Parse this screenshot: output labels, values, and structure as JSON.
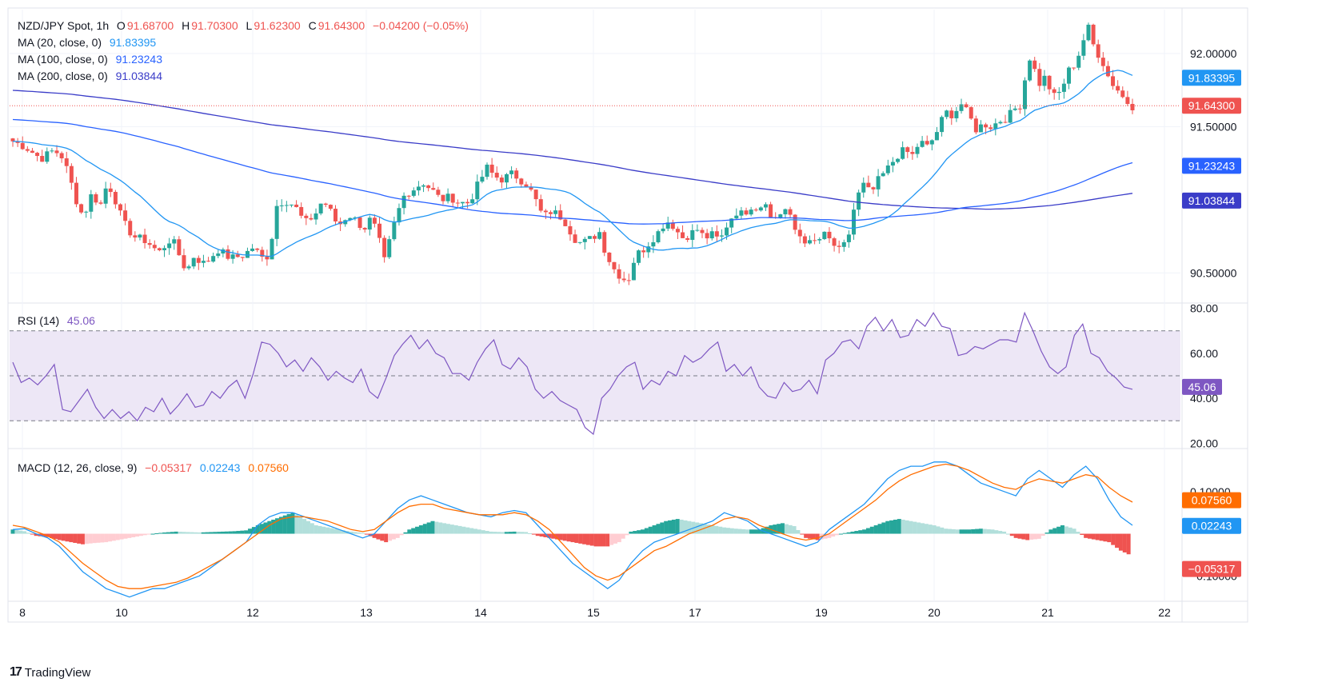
{
  "colors": {
    "up": "#26a69a",
    "down": "#ef5350",
    "ma20": "#2196f3",
    "ma100": "#2962ff",
    "ma200": "#3a3cc8",
    "rsi": "#7e57c2",
    "rsi_band": "#ede7f6",
    "macd": "#2196f3",
    "signal": "#ff6d00",
    "hist_up_strong": "#26a69a",
    "hist_up_weak": "#b2dfdb",
    "hist_down_strong": "#ef5350",
    "hist_down_weak": "#ffcdd2",
    "grid": "#f0f3fa"
  },
  "header": {
    "symbol": "NZD/JPY Spot, 1h",
    "o_label": "O",
    "o": "91.68700",
    "h_label": "H",
    "h": "91.70300",
    "l_label": "L",
    "l": "91.62300",
    "c_label": "C",
    "c": "91.64300",
    "change": "−0.04200 (−0.05%)",
    "ma20_label": "MA (20, close, 0)",
    "ma20_value": "91.83395",
    "ma100_label": "MA (100, close, 0)",
    "ma100_value": "91.23243",
    "ma200_label": "MA (200, close, 0)",
    "ma200_value": "91.03844",
    "rsi_label": "RSI (14)",
    "rsi_value": "45.06",
    "macd_label": "MACD (12, 26, close, 9)",
    "macd_hist": "−0.05317",
    "macd_line": "0.02243",
    "macd_signal": "0.07560"
  },
  "brand": {
    "logo": "17",
    "name": "TradingView"
  },
  "chart_data": [
    {
      "type": "candlestick",
      "title": "NZD/JPY Spot, 1h",
      "x_labels": [
        "8",
        "10",
        "12",
        "13",
        "14",
        "15",
        "17",
        "19",
        "20",
        "21",
        "22"
      ],
      "y_ticks": [
        "92.00000",
        "91.50000",
        "90.50000"
      ],
      "ylim": [
        90.3,
        92.3
      ],
      "last_price": 91.643,
      "price_labels": [
        "91.83395",
        "91.64300",
        "91.23243",
        "91.03844"
      ],
      "close_path": [
        [
          0,
          91.4
        ],
        [
          10,
          91.36
        ],
        [
          22,
          91.28
        ],
        [
          32,
          91.34
        ],
        [
          38,
          91.3
        ],
        [
          44,
          91.17
        ],
        [
          48,
          91.03
        ],
        [
          55,
          90.88
        ],
        [
          62,
          91.05
        ],
        [
          68,
          90.95
        ],
        [
          74,
          91.12
        ],
        [
          80,
          91.0
        ],
        [
          86,
          90.85
        ],
        [
          94,
          90.75
        ],
        [
          104,
          90.72
        ],
        [
          114,
          90.64
        ],
        [
          124,
          90.74
        ],
        [
          130,
          90.62
        ],
        [
          136,
          90.5
        ],
        [
          140,
          90.62
        ],
        [
          150,
          90.56
        ],
        [
          160,
          90.66
        ],
        [
          170,
          90.6
        ],
        [
          180,
          90.62
        ],
        [
          188,
          90.68
        ],
        [
          194,
          90.6
        ],
        [
          200,
          90.62
        ],
        [
          206,
          90.96
        ],
        [
          212,
          91.0
        ],
        [
          220,
          90.96
        ],
        [
          228,
          90.84
        ],
        [
          236,
          90.9
        ],
        [
          242,
          91.0
        ],
        [
          248,
          90.92
        ],
        [
          254,
          90.82
        ],
        [
          262,
          90.9
        ],
        [
          268,
          90.86
        ],
        [
          274,
          90.8
        ],
        [
          280,
          90.88
        ],
        [
          286,
          90.72
        ],
        [
          290,
          90.58
        ],
        [
          296,
          90.78
        ],
        [
          300,
          90.9
        ],
        [
          306,
          91.04
        ],
        [
          314,
          91.08
        ],
        [
          320,
          91.12
        ],
        [
          328,
          91.06
        ],
        [
          334,
          91.0
        ],
        [
          342,
          91.02
        ],
        [
          348,
          90.98
        ],
        [
          356,
          90.98
        ],
        [
          364,
          91.12
        ],
        [
          370,
          91.22
        ],
        [
          376,
          91.16
        ],
        [
          382,
          91.14
        ],
        [
          390,
          91.18
        ],
        [
          396,
          91.14
        ],
        [
          402,
          91.1
        ],
        [
          408,
          91.0
        ],
        [
          414,
          90.88
        ],
        [
          420,
          90.92
        ],
        [
          426,
          90.9
        ],
        [
          432,
          90.84
        ],
        [
          438,
          90.74
        ],
        [
          444,
          90.7
        ],
        [
          452,
          90.74
        ],
        [
          458,
          90.78
        ],
        [
          462,
          90.66
        ],
        [
          468,
          90.54
        ],
        [
          474,
          90.48
        ],
        [
          480,
          90.44
        ],
        [
          486,
          90.62
        ],
        [
          492,
          90.66
        ],
        [
          498,
          90.72
        ],
        [
          504,
          90.78
        ],
        [
          510,
          90.86
        ],
        [
          516,
          90.82
        ],
        [
          522,
          90.74
        ],
        [
          528,
          90.76
        ],
        [
          534,
          90.8
        ],
        [
          540,
          90.74
        ],
        [
          546,
          90.76
        ],
        [
          552,
          90.72
        ],
        [
          558,
          90.84
        ],
        [
          564,
          90.92
        ],
        [
          570,
          90.9
        ],
        [
          576,
          90.96
        ],
        [
          582,
          90.94
        ],
        [
          588,
          91.0
        ],
        [
          592,
          90.86
        ],
        [
          598,
          90.9
        ],
        [
          604,
          90.94
        ],
        [
          610,
          90.8
        ],
        [
          616,
          90.74
        ],
        [
          622,
          90.7
        ],
        [
          628,
          90.72
        ],
        [
          634,
          90.76
        ],
        [
          640,
          90.7
        ],
        [
          646,
          90.64
        ],
        [
          652,
          90.74
        ],
        [
          658,
          91.0
        ],
        [
          664,
          91.1
        ],
        [
          670,
          91.04
        ],
        [
          676,
          91.14
        ],
        [
          682,
          91.2
        ],
        [
          690,
          91.3
        ],
        [
          696,
          91.34
        ],
        [
          702,
          91.3
        ],
        [
          708,
          91.4
        ],
        [
          714,
          91.36
        ],
        [
          720,
          91.44
        ],
        [
          728,
          91.6
        ],
        [
          734,
          91.58
        ],
        [
          740,
          91.66
        ],
        [
          746,
          91.58
        ],
        [
          752,
          91.48
        ],
        [
          758,
          91.52
        ],
        [
          764,
          91.5
        ],
        [
          770,
          91.54
        ],
        [
          776,
          91.56
        ],
        [
          782,
          91.62
        ],
        [
          788,
          91.66
        ],
        [
          792,
          91.98
        ],
        [
          796,
          91.96
        ],
        [
          800,
          91.78
        ],
        [
          806,
          91.84
        ],
        [
          812,
          91.7
        ],
        [
          818,
          91.74
        ],
        [
          824,
          91.88
        ],
        [
          830,
          91.94
        ],
        [
          836,
          92.1
        ],
        [
          840,
          92.18
        ],
        [
          844,
          92.04
        ],
        [
          850,
          91.96
        ],
        [
          856,
          91.82
        ],
        [
          862,
          91.76
        ],
        [
          868,
          91.68
        ],
        [
          874,
          91.64
        ]
      ]
    },
    {
      "type": "line",
      "title": "RSI (14)",
      "y_ticks": [
        "80.00",
        "60.00",
        "40.00",
        "20.00"
      ],
      "ylim": [
        18,
        82
      ],
      "band": [
        30,
        70
      ],
      "midline": 50,
      "last_value": 45.06,
      "values": [
        56,
        47,
        49,
        46,
        50,
        55,
        35,
        34,
        39,
        44,
        36,
        31,
        35,
        31,
        34,
        30,
        36,
        34,
        40,
        33,
        37,
        42,
        36,
        37,
        43,
        40,
        45,
        48,
        40,
        51,
        65,
        64,
        60,
        54,
        57,
        52,
        58,
        54,
        48,
        52,
        49,
        47,
        53,
        43,
        40,
        49,
        59,
        64,
        68,
        62,
        66,
        60,
        58,
        51,
        51,
        48,
        56,
        62,
        66,
        55,
        53,
        58,
        54,
        44,
        40,
        43,
        39,
        37,
        35,
        27,
        24,
        40,
        44,
        50,
        54,
        56,
        44,
        48,
        46,
        52,
        50,
        59,
        56,
        58,
        62,
        65,
        52,
        55,
        50,
        54,
        45,
        41,
        40,
        47,
        43,
        44,
        48,
        42,
        57,
        60,
        65,
        66,
        62,
        72,
        76,
        70,
        75,
        67,
        68,
        75,
        72,
        78,
        72,
        71,
        59,
        60,
        63,
        62,
        64,
        66,
        66,
        65,
        78,
        70,
        61,
        54,
        51,
        54,
        68,
        73,
        60,
        58,
        52,
        49,
        45,
        44
      ]
    },
    {
      "type": "line",
      "title": "MACD (12, 26, close, 9)",
      "y_ticks": [
        "0.10000",
        "−0.10000"
      ],
      "ylim": [
        -0.16,
        0.2
      ],
      "series": [
        {
          "values": [
            0.01,
            0.012,
            0.0,
            -0.01,
            -0.03,
            -0.06,
            -0.09,
            -0.11,
            -0.13,
            -0.14,
            -0.15,
            -0.14,
            -0.13,
            -0.13,
            -0.12,
            -0.11,
            -0.1,
            -0.08,
            -0.06,
            -0.04,
            -0.02,
            0.02,
            0.04,
            0.05,
            0.05,
            0.04,
            0.03,
            0.02,
            0.01,
            0.0,
            -0.01,
            0.0,
            0.03,
            0.06,
            0.08,
            0.09,
            0.08,
            0.07,
            0.06,
            0.05,
            0.045,
            0.04,
            0.05,
            0.055,
            0.05,
            0.02,
            -0.01,
            -0.04,
            -0.07,
            -0.09,
            -0.11,
            -0.13,
            -0.11,
            -0.07,
            -0.04,
            -0.02,
            -0.01,
            0.0,
            0.01,
            0.02,
            0.03,
            0.05,
            0.04,
            0.03,
            0.01,
            0.0,
            -0.01,
            -0.02,
            -0.03,
            -0.02,
            0.01,
            0.03,
            0.05,
            0.07,
            0.1,
            0.13,
            0.15,
            0.16,
            0.16,
            0.17,
            0.17,
            0.16,
            0.14,
            0.12,
            0.11,
            0.1,
            0.09,
            0.13,
            0.15,
            0.13,
            0.11,
            0.14,
            0.16,
            0.13,
            0.08,
            0.04,
            0.02
          ]
        },
        {
          "values": [
            0.02,
            0.015,
            0.005,
            -0.005,
            -0.02,
            -0.045,
            -0.07,
            -0.09,
            -0.11,
            -0.125,
            -0.13,
            -0.13,
            -0.125,
            -0.12,
            -0.115,
            -0.105,
            -0.09,
            -0.075,
            -0.06,
            -0.04,
            -0.02,
            0.0,
            0.02,
            0.035,
            0.04,
            0.04,
            0.035,
            0.03,
            0.02,
            0.01,
            0.005,
            0.01,
            0.03,
            0.05,
            0.065,
            0.07,
            0.07,
            0.06,
            0.055,
            0.05,
            0.045,
            0.045,
            0.045,
            0.05,
            0.045,
            0.03,
            0.01,
            -0.02,
            -0.05,
            -0.08,
            -0.1,
            -0.11,
            -0.1,
            -0.08,
            -0.06,
            -0.04,
            -0.03,
            -0.015,
            0.0,
            0.01,
            0.02,
            0.035,
            0.04,
            0.035,
            0.02,
            0.01,
            0.0,
            -0.01,
            -0.015,
            -0.01,
            0.0,
            0.02,
            0.04,
            0.06,
            0.08,
            0.105,
            0.125,
            0.14,
            0.15,
            0.16,
            0.165,
            0.16,
            0.15,
            0.135,
            0.12,
            0.11,
            0.105,
            0.12,
            0.13,
            0.125,
            0.12,
            0.13,
            0.14,
            0.135,
            0.11,
            0.09,
            0.075
          ]
        }
      ],
      "histogram": [
        0.01,
        0.006,
        -0.005,
        -0.008,
        -0.015,
        -0.02,
        -0.025,
        -0.022,
        -0.02,
        -0.015,
        -0.01,
        -0.005,
        0.0,
        0.003,
        0.005,
        0.004,
        0.003,
        0.004,
        0.005,
        0.006,
        0.008,
        0.02,
        0.03,
        0.04,
        0.05,
        0.035,
        0.02,
        0.015,
        0.01,
        0.005,
        0.002,
        -0.01,
        -0.02,
        -0.01,
        0.01,
        0.02,
        0.03,
        0.025,
        0.02,
        0.015,
        0.01,
        0.005,
        0.004,
        0.005,
        0.004,
        -0.005,
        -0.01,
        -0.015,
        -0.02,
        -0.025,
        -0.03,
        -0.03,
        -0.02,
        0.005,
        0.01,
        0.02,
        0.03,
        0.035,
        0.03,
        0.025,
        0.02,
        0.015,
        0.012,
        0.01,
        0.01,
        0.02,
        0.025,
        0.018,
        -0.01,
        -0.015,
        -0.01,
        0.0,
        0.005,
        0.01,
        0.02,
        0.03,
        0.035,
        0.03,
        0.025,
        0.02,
        0.012,
        0.01,
        0.01,
        0.012,
        0.01,
        0.005,
        -0.01,
        -0.015,
        -0.012,
        0.01,
        0.02,
        0.012,
        -0.01,
        -0.015,
        -0.02,
        -0.04,
        -0.053
      ]
    }
  ]
}
